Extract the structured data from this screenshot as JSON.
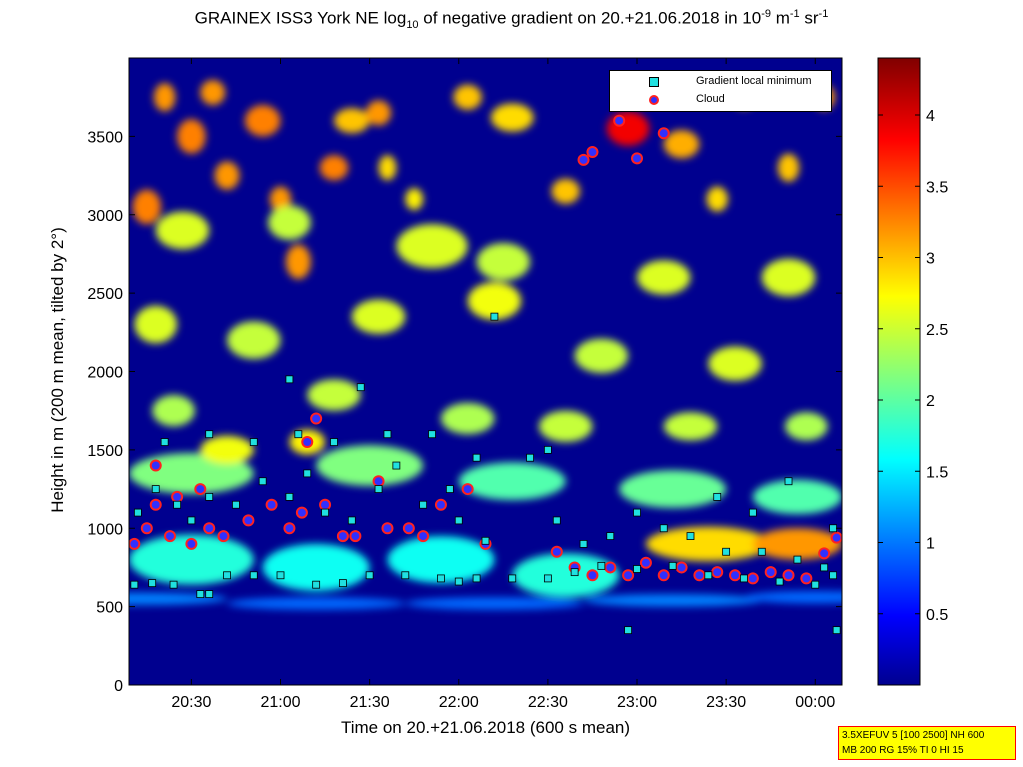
{
  "title": {
    "part1": "GRAINEX ISS3 York NE log",
    "sub": "10",
    "part2": " of negative gradient on 20.+21.06.2018 in 10",
    "sup1": "-9",
    "part3": " m",
    "sup2": "-1",
    "part4": " sr",
    "sup3": "-1"
  },
  "param_box": {
    "line1": "3.5XEFUV 5 [100 2500] NH 600",
    "line2": "MB 200 RG 15% TI 0 HI 15"
  },
  "colors": {
    "background_field": "#00008f",
    "cloud_marker_fill": "#3030ff",
    "cloud_marker_edge": "#ff2020",
    "gradient_marker_fill": "#20e0e0",
    "colormap": "jet"
  },
  "chart_data": {
    "type": "heatmap",
    "xlabel": "Time on 20.+21.06.2018 (600 s mean)",
    "ylabel": "Height in m (200 m mean, tilted by 2°)",
    "x_unit": "hours since 00:00 on 20.06.2018",
    "xlim": [
      20.15,
      24.15
    ],
    "ylim": [
      0,
      4000
    ],
    "x_ticks": [
      20.5,
      21.0,
      21.5,
      22.0,
      22.5,
      23.0,
      23.5,
      24.0
    ],
    "x_tick_labels": [
      "20:30",
      "21:00",
      "21:30",
      "22:00",
      "22:30",
      "23:00",
      "23:30",
      "00:00"
    ],
    "y_ticks": [
      0,
      500,
      1000,
      1500,
      2000,
      2500,
      3000,
      3500
    ],
    "y_tick_labels": [
      "0",
      "500",
      "1000",
      "1500",
      "2000",
      "2500",
      "3000",
      "3500"
    ],
    "colorbar": {
      "range": [
        0,
        4.4
      ],
      "ticks": [
        0.5,
        1,
        1.5,
        2,
        2.5,
        3,
        3.5,
        4
      ],
      "tick_labels": [
        "0.5",
        "1",
        "1.5",
        "2",
        "2.5",
        "3",
        "3.5",
        "4"
      ],
      "colormap": "jet"
    },
    "legend": {
      "position": "top-right",
      "entries": [
        {
          "label": "Gradient local minimum",
          "marker": "square",
          "color": "#20e0e0"
        },
        {
          "label": "Cloud",
          "marker": "circle",
          "color": "#3030ff"
        }
      ]
    },
    "blobs": [
      {
        "x": 20.25,
        "y": 3050,
        "dx": 0.08,
        "dy": 110,
        "v": 3.3
      },
      {
        "x": 20.35,
        "y": 3750,
        "dx": 0.06,
        "dy": 90,
        "v": 3.2
      },
      {
        "x": 20.5,
        "y": 3500,
        "dx": 0.08,
        "dy": 110,
        "v": 3.3
      },
      {
        "x": 20.62,
        "y": 3780,
        "dx": 0.07,
        "dy": 80,
        "v": 3.2
      },
      {
        "x": 20.7,
        "y": 3250,
        "dx": 0.07,
        "dy": 90,
        "v": 3.2
      },
      {
        "x": 20.9,
        "y": 3600,
        "dx": 0.1,
        "dy": 100,
        "v": 3.3
      },
      {
        "x": 21.0,
        "y": 3100,
        "dx": 0.06,
        "dy": 80,
        "v": 3.2
      },
      {
        "x": 21.1,
        "y": 2700,
        "dx": 0.07,
        "dy": 110,
        "v": 3.2
      },
      {
        "x": 21.3,
        "y": 3300,
        "dx": 0.08,
        "dy": 80,
        "v": 3.3
      },
      {
        "x": 21.4,
        "y": 3600,
        "dx": 0.1,
        "dy": 80,
        "v": 3.0
      },
      {
        "x": 21.55,
        "y": 3650,
        "dx": 0.07,
        "dy": 80,
        "v": 3.2
      },
      {
        "x": 21.6,
        "y": 3300,
        "dx": 0.05,
        "dy": 80,
        "v": 2.9
      },
      {
        "x": 21.75,
        "y": 3100,
        "dx": 0.05,
        "dy": 70,
        "v": 2.8
      },
      {
        "x": 22.05,
        "y": 3750,
        "dx": 0.08,
        "dy": 80,
        "v": 3.0
      },
      {
        "x": 22.3,
        "y": 3620,
        "dx": 0.12,
        "dy": 90,
        "v": 2.9
      },
      {
        "x": 22.6,
        "y": 3150,
        "dx": 0.08,
        "dy": 80,
        "v": 3.0
      },
      {
        "x": 22.95,
        "y": 3550,
        "dx": 0.12,
        "dy": 110,
        "v": 3.9
      },
      {
        "x": 23.25,
        "y": 3450,
        "dx": 0.1,
        "dy": 90,
        "v": 3.1
      },
      {
        "x": 23.45,
        "y": 3100,
        "dx": 0.06,
        "dy": 80,
        "v": 2.9
      },
      {
        "x": 23.6,
        "y": 3750,
        "dx": 0.06,
        "dy": 70,
        "v": 3.0
      },
      {
        "x": 23.85,
        "y": 3300,
        "dx": 0.06,
        "dy": 90,
        "v": 3.0
      },
      {
        "x": 24.05,
        "y": 3750,
        "dx": 0.06,
        "dy": 80,
        "v": 3.2
      },
      {
        "x": 20.45,
        "y": 2900,
        "dx": 0.15,
        "dy": 120,
        "v": 2.6
      },
      {
        "x": 21.05,
        "y": 2950,
        "dx": 0.12,
        "dy": 110,
        "v": 2.5
      },
      {
        "x": 21.85,
        "y": 2800,
        "dx": 0.2,
        "dy": 140,
        "v": 2.6
      },
      {
        "x": 22.25,
        "y": 2700,
        "dx": 0.15,
        "dy": 120,
        "v": 2.5
      },
      {
        "x": 23.15,
        "y": 2600,
        "dx": 0.15,
        "dy": 110,
        "v": 2.6
      },
      {
        "x": 23.85,
        "y": 2600,
        "dx": 0.15,
        "dy": 120,
        "v": 2.6
      },
      {
        "x": 20.3,
        "y": 2300,
        "dx": 0.12,
        "dy": 120,
        "v": 2.6
      },
      {
        "x": 20.85,
        "y": 2200,
        "dx": 0.15,
        "dy": 120,
        "v": 2.5
      },
      {
        "x": 21.55,
        "y": 2350,
        "dx": 0.15,
        "dy": 110,
        "v": 2.6
      },
      {
        "x": 22.2,
        "y": 2450,
        "dx": 0.15,
        "dy": 120,
        "v": 2.7
      },
      {
        "x": 22.8,
        "y": 2100,
        "dx": 0.15,
        "dy": 110,
        "v": 2.5
      },
      {
        "x": 23.55,
        "y": 2050,
        "dx": 0.15,
        "dy": 110,
        "v": 2.6
      },
      {
        "x": 20.4,
        "y": 1750,
        "dx": 0.12,
        "dy": 100,
        "v": 2.4
      },
      {
        "x": 21.3,
        "y": 1850,
        "dx": 0.15,
        "dy": 100,
        "v": 2.5
      },
      {
        "x": 22.05,
        "y": 1700,
        "dx": 0.15,
        "dy": 100,
        "v": 2.4
      },
      {
        "x": 22.6,
        "y": 1650,
        "dx": 0.15,
        "dy": 100,
        "v": 2.5
      },
      {
        "x": 23.3,
        "y": 1650,
        "dx": 0.15,
        "dy": 90,
        "v": 2.5
      },
      {
        "x": 23.95,
        "y": 1650,
        "dx": 0.12,
        "dy": 90,
        "v": 2.4
      },
      {
        "x": 20.5,
        "y": 1350,
        "dx": 0.35,
        "dy": 130,
        "v": 2.2
      },
      {
        "x": 21.5,
        "y": 1400,
        "dx": 0.3,
        "dy": 130,
        "v": 2.2
      },
      {
        "x": 22.3,
        "y": 1300,
        "dx": 0.3,
        "dy": 120,
        "v": 2.0
      },
      {
        "x": 23.2,
        "y": 1250,
        "dx": 0.3,
        "dy": 120,
        "v": 2.1
      },
      {
        "x": 23.9,
        "y": 1200,
        "dx": 0.25,
        "dy": 110,
        "v": 2.0
      },
      {
        "x": 20.5,
        "y": 800,
        "dx": 0.35,
        "dy": 160,
        "v": 1.8
      },
      {
        "x": 21.2,
        "y": 750,
        "dx": 0.3,
        "dy": 150,
        "v": 1.7
      },
      {
        "x": 21.9,
        "y": 800,
        "dx": 0.3,
        "dy": 150,
        "v": 1.7
      },
      {
        "x": 22.6,
        "y": 700,
        "dx": 0.3,
        "dy": 140,
        "v": 1.8
      },
      {
        "x": 23.4,
        "y": 900,
        "dx": 0.35,
        "dy": 110,
        "v": 2.9
      },
      {
        "x": 23.9,
        "y": 900,
        "dx": 0.25,
        "dy": 100,
        "v": 3.2
      },
      {
        "x": 20.7,
        "y": 1500,
        "dx": 0.15,
        "dy": 90,
        "v": 2.7
      },
      {
        "x": 21.15,
        "y": 1550,
        "dx": 0.1,
        "dy": 80,
        "v": 2.8
      },
      {
        "x": 20.2,
        "y": 550,
        "dx": 0.5,
        "dy": 40,
        "v": 1.1
      },
      {
        "x": 21.2,
        "y": 520,
        "dx": 0.5,
        "dy": 40,
        "v": 1.0
      },
      {
        "x": 22.2,
        "y": 520,
        "dx": 0.5,
        "dy": 40,
        "v": 1.0
      },
      {
        "x": 23.2,
        "y": 540,
        "dx": 0.5,
        "dy": 40,
        "v": 1.1
      },
      {
        "x": 24.0,
        "y": 560,
        "dx": 0.4,
        "dy": 40,
        "v": 1.0
      }
    ],
    "gradient_minima": [
      {
        "x": 20.18,
        "y": 640
      },
      {
        "x": 20.28,
        "y": 650
      },
      {
        "x": 20.4,
        "y": 640
      },
      {
        "x": 20.55,
        "y": 580
      },
      {
        "x": 20.7,
        "y": 700
      },
      {
        "x": 20.85,
        "y": 700
      },
      {
        "x": 21.0,
        "y": 700
      },
      {
        "x": 21.2,
        "y": 640
      },
      {
        "x": 21.35,
        "y": 650
      },
      {
        "x": 21.5,
        "y": 700
      },
      {
        "x": 21.7,
        "y": 700
      },
      {
        "x": 21.9,
        "y": 680
      },
      {
        "x": 22.1,
        "y": 680
      },
      {
        "x": 22.3,
        "y": 680
      },
      {
        "x": 22.5,
        "y": 680
      },
      {
        "x": 22.65,
        "y": 720
      },
      {
        "x": 22.8,
        "y": 760
      },
      {
        "x": 23.0,
        "y": 740
      },
      {
        "x": 23.2,
        "y": 760
      },
      {
        "x": 23.4,
        "y": 700
      },
      {
        "x": 23.6,
        "y": 680
      },
      {
        "x": 23.8,
        "y": 660
      },
      {
        "x": 24.0,
        "y": 640
      },
      {
        "x": 24.1,
        "y": 700
      },
      {
        "x": 20.2,
        "y": 1100
      },
      {
        "x": 20.3,
        "y": 1250
      },
      {
        "x": 20.42,
        "y": 1150
      },
      {
        "x": 20.5,
        "y": 1050
      },
      {
        "x": 20.6,
        "y": 1200
      },
      {
        "x": 20.75,
        "y": 1150
      },
      {
        "x": 20.9,
        "y": 1300
      },
      {
        "x": 21.05,
        "y": 1200
      },
      {
        "x": 21.15,
        "y": 1350
      },
      {
        "x": 21.25,
        "y": 1100
      },
      {
        "x": 21.4,
        "y": 1050
      },
      {
        "x": 21.55,
        "y": 1250
      },
      {
        "x": 21.65,
        "y": 1400
      },
      {
        "x": 21.8,
        "y": 1150
      },
      {
        "x": 21.95,
        "y": 1250
      },
      {
        "x": 22.0,
        "y": 1050
      },
      {
        "x": 22.15,
        "y": 920
      },
      {
        "x": 22.4,
        "y": 1450
      },
      {
        "x": 22.55,
        "y": 1050
      },
      {
        "x": 22.7,
        "y": 900
      },
      {
        "x": 22.85,
        "y": 950
      },
      {
        "x": 23.0,
        "y": 1100
      },
      {
        "x": 23.15,
        "y": 1000
      },
      {
        "x": 23.3,
        "y": 950
      },
      {
        "x": 23.5,
        "y": 850
      },
      {
        "x": 23.7,
        "y": 850
      },
      {
        "x": 23.9,
        "y": 800
      },
      {
        "x": 24.05,
        "y": 750
      },
      {
        "x": 20.35,
        "y": 1550
      },
      {
        "x": 20.6,
        "y": 1600
      },
      {
        "x": 20.85,
        "y": 1550
      },
      {
        "x": 21.1,
        "y": 1600
      },
      {
        "x": 21.3,
        "y": 1550
      },
      {
        "x": 21.6,
        "y": 1600
      },
      {
        "x": 21.85,
        "y": 1600
      },
      {
        "x": 22.1,
        "y": 1450
      },
      {
        "x": 22.5,
        "y": 1500
      },
      {
        "x": 21.45,
        "y": 1900
      },
      {
        "x": 21.05,
        "y": 1950
      },
      {
        "x": 22.2,
        "y": 2350
      },
      {
        "x": 23.45,
        "y": 1200
      },
      {
        "x": 23.65,
        "y": 1100
      },
      {
        "x": 23.85,
        "y": 1300
      },
      {
        "x": 24.1,
        "y": 1000
      },
      {
        "x": 24.12,
        "y": 350
      },
      {
        "x": 22.95,
        "y": 350
      },
      {
        "x": 20.6,
        "y": 580
      },
      {
        "x": 22.0,
        "y": 660
      }
    ],
    "clouds": [
      {
        "x": 20.18,
        "y": 900
      },
      {
        "x": 20.25,
        "y": 1000
      },
      {
        "x": 20.3,
        "y": 1150
      },
      {
        "x": 20.38,
        "y": 950
      },
      {
        "x": 20.42,
        "y": 1200
      },
      {
        "x": 20.5,
        "y": 900
      },
      {
        "x": 20.55,
        "y": 1250
      },
      {
        "x": 20.6,
        "y": 1000
      },
      {
        "x": 20.68,
        "y": 950
      },
      {
        "x": 20.82,
        "y": 1050
      },
      {
        "x": 20.95,
        "y": 1150
      },
      {
        "x": 21.05,
        "y": 1000
      },
      {
        "x": 21.12,
        "y": 1100
      },
      {
        "x": 21.25,
        "y": 1150
      },
      {
        "x": 21.35,
        "y": 950
      },
      {
        "x": 21.42,
        "y": 950
      },
      {
        "x": 21.55,
        "y": 1300
      },
      {
        "x": 21.6,
        "y": 1000
      },
      {
        "x": 21.72,
        "y": 1000
      },
      {
        "x": 21.8,
        "y": 950
      },
      {
        "x": 21.9,
        "y": 1150
      },
      {
        "x": 22.05,
        "y": 1250
      },
      {
        "x": 22.15,
        "y": 900
      },
      {
        "x": 22.55,
        "y": 850
      },
      {
        "x": 22.65,
        "y": 750
      },
      {
        "x": 22.75,
        "y": 700
      },
      {
        "x": 22.85,
        "y": 750
      },
      {
        "x": 22.95,
        "y": 700
      },
      {
        "x": 23.05,
        "y": 780
      },
      {
        "x": 23.15,
        "y": 700
      },
      {
        "x": 23.25,
        "y": 750
      },
      {
        "x": 23.35,
        "y": 700
      },
      {
        "x": 23.45,
        "y": 720
      },
      {
        "x": 23.55,
        "y": 700
      },
      {
        "x": 23.65,
        "y": 680
      },
      {
        "x": 23.75,
        "y": 720
      },
      {
        "x": 23.85,
        "y": 700
      },
      {
        "x": 23.95,
        "y": 680
      },
      {
        "x": 24.05,
        "y": 840
      },
      {
        "x": 24.12,
        "y": 940
      },
      {
        "x": 21.15,
        "y": 1550
      },
      {
        "x": 21.2,
        "y": 1700
      },
      {
        "x": 22.7,
        "y": 3350
      },
      {
        "x": 22.75,
        "y": 3400
      },
      {
        "x": 23.0,
        "y": 3360
      },
      {
        "x": 23.15,
        "y": 3520
      },
      {
        "x": 22.9,
        "y": 3600
      },
      {
        "x": 20.3,
        "y": 1400
      }
    ]
  }
}
